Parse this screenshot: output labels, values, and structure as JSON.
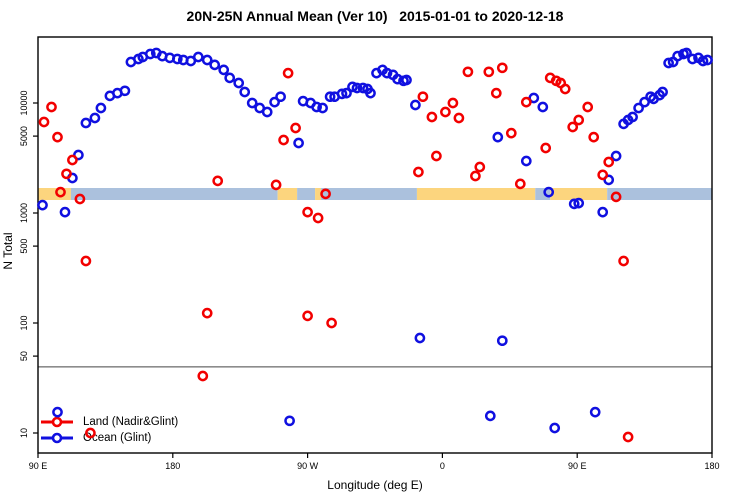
{
  "chart_data": {
    "type": "scatter",
    "title": "20N-25N Annual Mean (Ver 10)   2015-01-01 to 2020-12-18",
    "xlabel": "Longitude (deg E)",
    "ylabel": "N Total",
    "y_scale": "log",
    "ylim": [
      8,
      40000
    ],
    "x_axis": {
      "range_deg_east_of_90E": [
        0,
        450
      ],
      "ticks": [
        {
          "deg": 0,
          "label": "90 E"
        },
        {
          "deg": 90,
          "label": "180"
        },
        {
          "deg": 180,
          "label": "90 W"
        },
        {
          "deg": 270,
          "label": "0"
        },
        {
          "deg": 360,
          "label": "90 E"
        },
        {
          "deg": 450,
          "label": "180"
        }
      ]
    },
    "y_ticks": [
      10,
      50,
      100,
      500,
      1000,
      5000,
      10000
    ],
    "threshold_line_value": 40,
    "surface_band": {
      "description": "land/ocean strip drawn across plot near N=1500",
      "segments": [
        {
          "start_deg": 0,
          "end_deg": 22,
          "type": "land"
        },
        {
          "start_deg": 22,
          "end_deg": 160,
          "type": "ocean"
        },
        {
          "start_deg": 160,
          "end_deg": 173,
          "type": "land"
        },
        {
          "start_deg": 173,
          "end_deg": 185,
          "type": "ocean"
        },
        {
          "start_deg": 185,
          "end_deg": 189,
          "type": "land"
        },
        {
          "start_deg": 189,
          "end_deg": 253,
          "type": "ocean"
        },
        {
          "start_deg": 253,
          "end_deg": 332,
          "type": "land"
        },
        {
          "start_deg": 332,
          "end_deg": 342,
          "type": "ocean"
        },
        {
          "start_deg": 342,
          "end_deg": 380,
          "type": "land"
        },
        {
          "start_deg": 380,
          "end_deg": 450,
          "type": "ocean"
        }
      ]
    },
    "legend": {
      "position": "bottom-left",
      "entries": [
        {
          "label": "Land (Nadir&Glint)",
          "series": "land"
        },
        {
          "label": "Ocean (Glint)",
          "series": "ocean"
        }
      ]
    },
    "series": [
      {
        "name": "Land (Nadir&Glint)",
        "color": "#f20000",
        "points": [
          [
            4,
            6720
          ],
          [
            9,
            9200
          ],
          [
            13,
            4900
          ],
          [
            15,
            1550
          ],
          [
            19,
            2270
          ],
          [
            23,
            3030
          ],
          [
            28,
            1340
          ],
          [
            32,
            366
          ],
          [
            35,
            10
          ],
          [
            110,
            33
          ],
          [
            113,
            123
          ],
          [
            120,
            1960
          ],
          [
            159,
            1800
          ],
          [
            164,
            4610
          ],
          [
            167,
            18700
          ],
          [
            172,
            5930
          ],
          [
            180,
            116
          ],
          [
            180,
            1020
          ],
          [
            187,
            900
          ],
          [
            192,
            1490
          ],
          [
            196,
            100
          ],
          [
            254,
            2360
          ],
          [
            257,
            11400
          ],
          [
            263,
            7460
          ],
          [
            266,
            3300
          ],
          [
            272,
            8280
          ],
          [
            277,
            10000
          ],
          [
            281,
            7310
          ],
          [
            287,
            19200
          ],
          [
            292,
            2170
          ],
          [
            295,
            2620
          ],
          [
            301,
            19200
          ],
          [
            306,
            12300
          ],
          [
            310,
            20900
          ],
          [
            316,
            5330
          ],
          [
            322,
            1840
          ],
          [
            326,
            10200
          ],
          [
            339,
            3900
          ],
          [
            342,
            16900
          ],
          [
            346,
            15900
          ],
          [
            349,
            15200
          ],
          [
            352,
            13400
          ],
          [
            357,
            6050
          ],
          [
            361,
            7000
          ],
          [
            367,
            9200
          ],
          [
            371,
            4900
          ],
          [
            377,
            2220
          ],
          [
            381,
            2910
          ],
          [
            386,
            1400
          ],
          [
            391,
            366
          ],
          [
            394,
            9.2
          ]
        ]
      },
      {
        "name": "Ocean (Glint)",
        "color": "#1010e0",
        "points": [
          [
            3,
            1180
          ],
          [
            13,
            15.5
          ],
          [
            18,
            1020
          ],
          [
            23,
            2080
          ],
          [
            27,
            3370
          ],
          [
            32,
            6580
          ],
          [
            38,
            7310
          ],
          [
            42,
            9010
          ],
          [
            48,
            11600
          ],
          [
            53,
            12300
          ],
          [
            58,
            12900
          ],
          [
            62,
            23600
          ],
          [
            67,
            25100
          ],
          [
            70,
            26200
          ],
          [
            75,
            27900
          ],
          [
            79,
            28500
          ],
          [
            83,
            26700
          ],
          [
            88,
            25700
          ],
          [
            93,
            25100
          ],
          [
            97,
            24600
          ],
          [
            102,
            24100
          ],
          [
            107,
            26200
          ],
          [
            113,
            24600
          ],
          [
            118,
            22200
          ],
          [
            124,
            20000
          ],
          [
            128,
            16900
          ],
          [
            134,
            15200
          ],
          [
            138,
            12600
          ],
          [
            143,
            10000
          ],
          [
            148,
            9010
          ],
          [
            153,
            8280
          ],
          [
            158,
            10200
          ],
          [
            162,
            11400
          ],
          [
            168,
            12.9
          ],
          [
            174,
            4330
          ],
          [
            177,
            10400
          ],
          [
            182,
            10000
          ],
          [
            186,
            9200
          ],
          [
            190,
            9010
          ],
          [
            195,
            11400
          ],
          [
            198,
            11400
          ],
          [
            203,
            12100
          ],
          [
            206,
            12300
          ],
          [
            210,
            14000
          ],
          [
            213,
            13700
          ],
          [
            217,
            13700
          ],
          [
            220,
            13400
          ],
          [
            222,
            12300
          ],
          [
            226,
            18700
          ],
          [
            230,
            20000
          ],
          [
            233,
            18700
          ],
          [
            237,
            18000
          ],
          [
            240,
            16500
          ],
          [
            244,
            15900
          ],
          [
            246,
            16200
          ],
          [
            252,
            9590
          ],
          [
            255,
            73
          ],
          [
            302,
            14.3
          ],
          [
            307,
            4900
          ],
          [
            310,
            69
          ],
          [
            326,
            2970
          ],
          [
            331,
            11100
          ],
          [
            337,
            9200
          ],
          [
            341,
            1550
          ],
          [
            345,
            11.1
          ],
          [
            358,
            1210
          ],
          [
            361,
            1230
          ],
          [
            372,
            15.5
          ],
          [
            377,
            1020
          ],
          [
            381,
            2000
          ],
          [
            386,
            3300
          ],
          [
            391,
            6450
          ],
          [
            394,
            7000
          ],
          [
            397,
            7460
          ],
          [
            401,
            9010
          ],
          [
            405,
            10200
          ],
          [
            409,
            11400
          ],
          [
            411,
            10900
          ],
          [
            415,
            11800
          ],
          [
            417,
            12600
          ],
          [
            421,
            23100
          ],
          [
            424,
            23600
          ],
          [
            427,
            26700
          ],
          [
            431,
            27900
          ],
          [
            433,
            28500
          ],
          [
            437,
            25100
          ],
          [
            441,
            25700
          ],
          [
            444,
            24100
          ],
          [
            447,
            24600
          ]
        ]
      }
    ]
  },
  "colors": {
    "land_band": "#fcd57e",
    "ocean_band": "#abc1dd",
    "threshold_line": "#8c8c8c",
    "axis": "#000000"
  }
}
